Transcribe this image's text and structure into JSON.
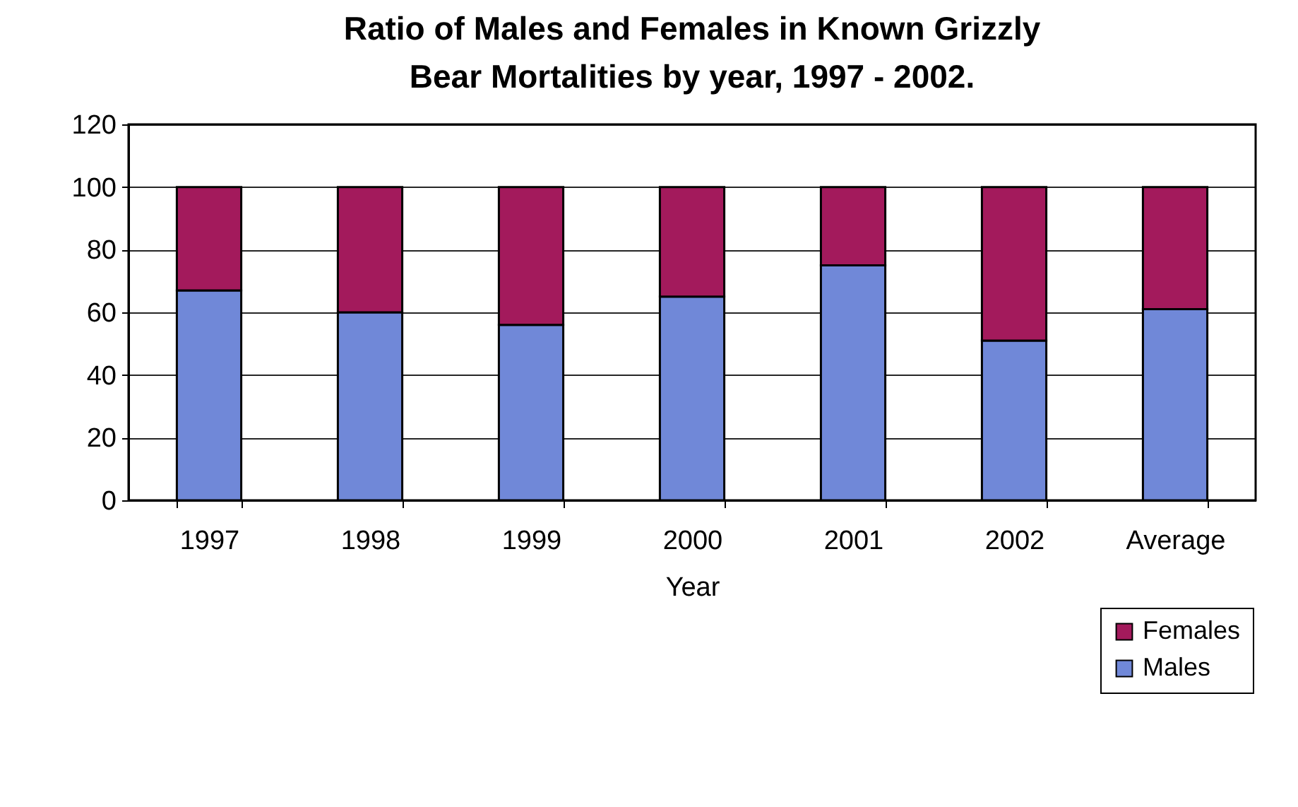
{
  "chart_data": {
    "type": "bar",
    "title": "Ratio of Males and Females in Known Grizzly Bear Mortalities by year, 1997 - 2002.",
    "xlabel": "Year",
    "categories": [
      "1997",
      "1998",
      "1999",
      "2000",
      "2001",
      "2002",
      "Average"
    ],
    "series": [
      {
        "name": "Males",
        "color": "#7088d8",
        "values": [
          67,
          60,
          56,
          65,
          75,
          51,
          61
        ]
      },
      {
        "name": "Females",
        "color": "#a31a5c",
        "values": [
          33,
          40,
          44,
          35,
          25,
          49,
          39
        ]
      }
    ],
    "stacked": true,
    "ylim": [
      0,
      120
    ],
    "yticks": [
      0,
      20,
      40,
      60,
      80,
      100,
      120
    ],
    "grid": "y",
    "legend": "bottom right"
  }
}
